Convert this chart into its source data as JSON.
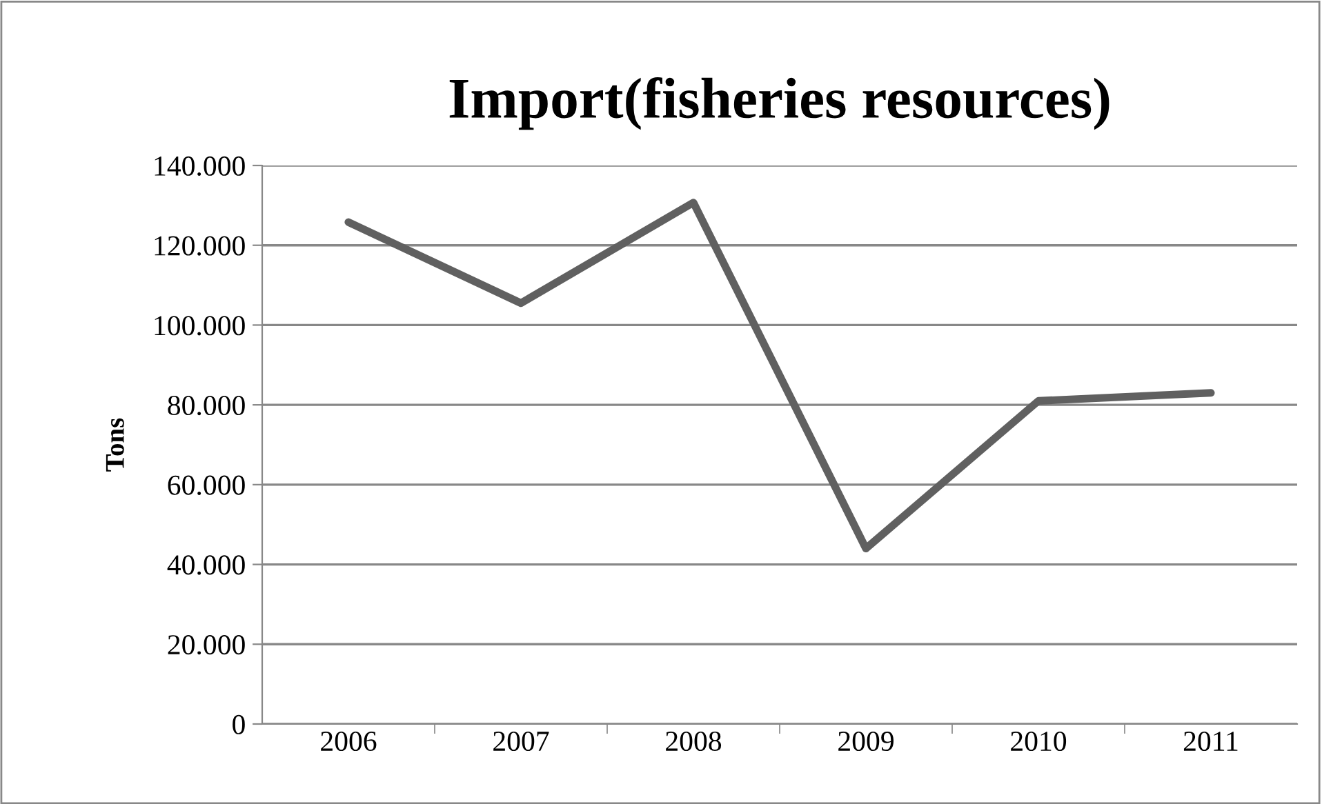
{
  "chart_data": {
    "type": "line",
    "title": "Import(fisheries resources)",
    "ylabel": "Tons",
    "categories": [
      "2006",
      "2007",
      "2008",
      "2009",
      "2010",
      "2011"
    ],
    "series": [
      {
        "color": "#606060",
        "values": [
          125800,
          105500,
          130700,
          44000,
          81000,
          83000
        ]
      }
    ],
    "ylim": [
      0,
      140000
    ],
    "yticks": [
      0,
      {
        "value": 20000,
        "label": "20.000"
      },
      {
        "value": 40000,
        "label": "40.000"
      },
      {
        "value": 60000,
        "label": "60.000"
      },
      {
        "value": 80000,
        "label": "80.000"
      },
      {
        "value": 100000,
        "label": "100.000"
      },
      {
        "value": 120000,
        "label": "120.000"
      },
      {
        "value": 140000,
        "label": "140.000"
      }
    ],
    "grid": "y",
    "legend": false,
    "marker": "none",
    "line_style": "solid"
  }
}
